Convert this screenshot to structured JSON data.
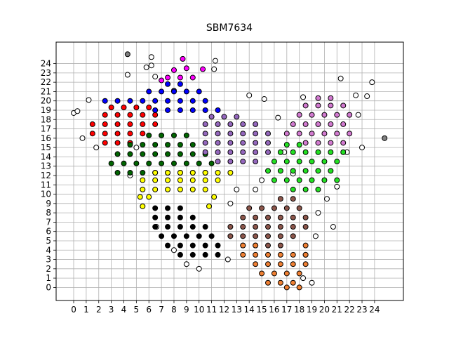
{
  "chart_data": {
    "type": "scatter",
    "title": "SBM7634",
    "xlim": [
      -1.4,
      26.3
    ],
    "ylim": [
      -1.4,
      26.3
    ],
    "xticks": [
      0,
      1,
      2,
      3,
      4,
      5,
      6,
      7,
      8,
      9,
      10,
      11,
      12,
      13,
      14,
      15,
      16,
      17,
      18,
      19,
      20,
      21,
      22,
      23,
      24
    ],
    "yticks": [
      0,
      1,
      2,
      3,
      4,
      5,
      6,
      7,
      8,
      9,
      10,
      11,
      12,
      13,
      14,
      15,
      16,
      17,
      18,
      19,
      20,
      21,
      22,
      23,
      24
    ],
    "grid": true,
    "series": [
      {
        "color": "#ffffff",
        "x": [
          0,
          0.3,
          1.2,
          1.8,
          4.3,
          6.2,
          6.2,
          5.8,
          6.5,
          8,
          11.3,
          11.2,
          15.2,
          16.3,
          14,
          18.3,
          21.3,
          22.5,
          23.4,
          23.8,
          22.7,
          23,
          21.8,
          21,
          20.2,
          19.5,
          19.3,
          18.5,
          18.3,
          12.5,
          12.3,
          10,
          9,
          8,
          6.6,
          4.5,
          5,
          0.7,
          20.7,
          19,
          13,
          14.5,
          15,
          16.8,
          17.5
        ],
        "values": [
          18.7,
          18.9,
          20.1,
          15,
          22.8,
          24.7,
          23.8,
          23.6,
          22.6,
          21.1,
          24.3,
          23.4,
          20.2,
          18.2,
          20.6,
          20.4,
          22.4,
          20.6,
          20.5,
          22,
          18.5,
          15,
          14.5,
          10.8,
          9.5,
          8,
          5.5,
          3.5,
          1,
          9,
          3,
          2,
          2.5,
          4,
          6.5,
          12,
          15,
          16,
          6.5,
          0.5,
          10.5,
          10.5,
          11.5,
          14.5,
          12.2
        ]
      },
      {
        "color": "#808080",
        "x": [
          4.3,
          24.8
        ],
        "values": [
          25,
          16
        ]
      },
      {
        "color": "#ff0000",
        "x": [
          2.5,
          3.5,
          4.5,
          1.5,
          2.5,
          3.5,
          4.5,
          5.5,
          1.5,
          2.5,
          3.5,
          4.5,
          5.5,
          6.5,
          2.5,
          3.5,
          4.5,
          5.5,
          6.5,
          3,
          4,
          5,
          6
        ],
        "values": [
          15.5,
          15.5,
          15.5,
          16.5,
          16.5,
          16.5,
          16.5,
          16.5,
          17.5,
          17.5,
          17.5,
          17.5,
          17.5,
          17.5,
          18.5,
          18.5,
          18.5,
          18.5,
          18.5,
          19.3,
          19.3,
          19.3,
          19.3
        ]
      },
      {
        "color": "#0000ff",
        "x": [
          6.5,
          7.5,
          8.5,
          9.5,
          10.5,
          11.5,
          2.5,
          3.5,
          4.5,
          5.5,
          6.5,
          7.5,
          8.5,
          9.5,
          10.5,
          6,
          7,
          8,
          9,
          10,
          7.5,
          8.5
        ],
        "values": [
          19,
          19,
          19,
          19,
          19,
          19,
          20,
          20,
          20,
          20,
          20,
          20,
          20,
          20,
          20,
          21,
          21,
          21,
          21,
          21,
          21.8,
          21.8
        ]
      },
      {
        "color": "#ff00ff",
        "x": [
          7.5,
          8.5,
          9.5,
          8,
          9,
          8.7,
          10.3,
          7
        ],
        "values": [
          22.5,
          22.5,
          22.5,
          23.3,
          23.5,
          24.5,
          23.4,
          22.2
        ]
      },
      {
        "color": "#006400",
        "x": [
          3.5,
          4.5,
          5.5,
          6.5,
          7.5,
          8.5,
          9.5,
          10.5,
          3,
          4,
          5,
          6,
          7,
          8,
          9,
          10,
          11,
          3.5,
          4.5,
          5.5,
          6.5,
          7.5,
          8.5,
          9.5,
          10.5,
          4.5,
          5.5,
          6.5,
          7.5,
          8.5,
          9.5,
          6,
          7,
          8,
          9
        ],
        "values": [
          12.3,
          12.3,
          12.3,
          12.3,
          12.3,
          12.3,
          12.3,
          12.3,
          13.3,
          13.3,
          13.3,
          13.3,
          13.3,
          13.3,
          13.3,
          13.3,
          13.3,
          14.3,
          14.3,
          14.3,
          14.3,
          14.3,
          14.3,
          14.3,
          14.3,
          15.3,
          15.3,
          15.3,
          15.3,
          15.3,
          15.3,
          16.3,
          16.3,
          16.3,
          16.3
        ]
      },
      {
        "color": "#9467bd",
        "x": [
          11.5,
          12.5,
          13.5,
          14.5,
          10.5,
          11.5,
          12.5,
          13.5,
          14.5,
          15.5,
          10.5,
          11.5,
          12.5,
          13.5,
          14.5,
          15.5,
          10.5,
          11.5,
          12.5,
          13.5,
          14.5,
          15.5,
          10.5,
          11.5,
          12.5,
          13.5,
          14.5,
          11,
          12,
          13
        ],
        "values": [
          13.5,
          13.5,
          13.5,
          13.5,
          14.5,
          14.5,
          14.5,
          14.5,
          14.5,
          14.5,
          15.5,
          15.5,
          15.5,
          15.5,
          15.5,
          15.5,
          16.5,
          16.5,
          16.5,
          16.5,
          16.5,
          16.5,
          17.5,
          17.5,
          17.5,
          17.5,
          17.5,
          18.3,
          18.3,
          18.3
        ]
      },
      {
        "color": "#d27ad0",
        "x": [
          18.5,
          19.5,
          20.5,
          21.5,
          17,
          18,
          19,
          20,
          21,
          22,
          17.5,
          18.5,
          19.5,
          20.5,
          21.5,
          18,
          19,
          20,
          21,
          22,
          18.5,
          19.5,
          20.5,
          21.5,
          19.5,
          20.5
        ],
        "values": [
          15.5,
          15.5,
          15.5,
          15.5,
          16.5,
          16.5,
          16.5,
          16.5,
          16.5,
          16.5,
          17.5,
          17.5,
          17.5,
          17.5,
          17.5,
          18.5,
          18.5,
          18.5,
          18.5,
          18.5,
          19.5,
          19.5,
          19.5,
          19.5,
          20.3,
          20.3
        ]
      },
      {
        "color": "#22e022",
        "x": [
          17.5,
          18.5,
          19.5,
          16,
          17,
          18,
          19,
          20,
          21,
          15.5,
          16.5,
          17.5,
          18.5,
          19.5,
          20.5,
          16,
          17,
          18,
          19,
          20,
          21,
          16.5,
          17.5,
          18.5,
          19.5,
          20.5,
          21.5,
          17,
          18
        ],
        "values": [
          10.5,
          10.5,
          10.5,
          11.5,
          11.5,
          11.5,
          11.5,
          11.5,
          11.5,
          12.5,
          12.5,
          12.5,
          12.5,
          12.5,
          12.5,
          13.5,
          13.5,
          13.5,
          13.5,
          13.5,
          13.5,
          14.5,
          14.5,
          14.5,
          14.5,
          14.5,
          14.5,
          15.3,
          15.3
        ]
      },
      {
        "color": "#ffff00",
        "x": [
          5.5,
          10.8,
          5.3,
          6,
          11.2,
          5.5,
          6.5,
          7.5,
          8.5,
          9.5,
          10.5,
          5.5,
          6.5,
          7.5,
          8.5,
          9.5,
          10.5,
          11.5,
          6.5,
          7.5,
          8.5,
          9.5,
          10.5,
          11.5,
          12.5
        ],
        "values": [
          8.7,
          8.7,
          9.7,
          9.7,
          9.7,
          10.5,
          10.5,
          10.5,
          10.5,
          10.5,
          10.5,
          11.5,
          11.5,
          11.5,
          11.5,
          11.5,
          11.5,
          11.5,
          12.3,
          12.3,
          12.3,
          12.3,
          12.3,
          12.3,
          12.3
        ]
      },
      {
        "color": "#000000",
        "x": [
          6.5,
          7.5,
          8.5,
          6.5,
          7.5,
          8.5,
          9.5,
          6.5,
          7.5,
          8.5,
          9.5,
          10.5,
          7,
          8,
          9,
          10,
          11,
          7.5,
          8.5,
          9.5,
          10.5,
          11.5,
          8.5,
          9.5,
          10.5,
          11.5
        ],
        "values": [
          8.5,
          8.5,
          8.5,
          7.5,
          7.5,
          7.5,
          7.5,
          6.5,
          6.5,
          6.5,
          6.5,
          6.5,
          5.5,
          5.5,
          5.5,
          5.5,
          5.5,
          4.5,
          4.5,
          4.5,
          4.5,
          4.5,
          3.5,
          3.5,
          3.5,
          3.5
        ]
      },
      {
        "color": "#8c564b",
        "x": [
          16.5,
          17.5,
          14,
          15,
          16,
          17,
          18,
          13.5,
          14.5,
          15.5,
          16.5,
          17.5,
          18.5,
          12.5,
          13.5,
          14.5,
          15.5,
          16.5,
          17.5,
          18.5,
          12.5,
          13.5,
          14.5,
          15.5,
          16.5,
          17.5,
          13.5,
          14.5,
          15.5,
          16.5
        ],
        "values": [
          9.5,
          9.5,
          8.5,
          8.5,
          8.5,
          8.5,
          8.5,
          7.5,
          7.5,
          7.5,
          7.5,
          7.5,
          7.5,
          6.5,
          6.5,
          6.5,
          6.5,
          6.5,
          6.5,
          6.5,
          5.5,
          5.5,
          5.5,
          5.5,
          5.5,
          5.5,
          4.5,
          4.5,
          4.5,
          4.5
        ]
      },
      {
        "color": "#f08033",
        "x": [
          13.5,
          14.5,
          18.5,
          13.5,
          14.5,
          15.5,
          16.5,
          17.5,
          18.5,
          14.5,
          15.5,
          16.5,
          17.5,
          18.5,
          15,
          16,
          17,
          18,
          15.5,
          16.5,
          17.5,
          17,
          18
        ],
        "values": [
          4.5,
          4.5,
          4.5,
          3.5,
          3.5,
          3.5,
          3.5,
          3.5,
          3.5,
          2.5,
          2.5,
          2.5,
          2.5,
          2.5,
          1.5,
          1.5,
          1.5,
          1.5,
          0.5,
          0.5,
          0.5,
          0,
          0
        ]
      }
    ]
  }
}
